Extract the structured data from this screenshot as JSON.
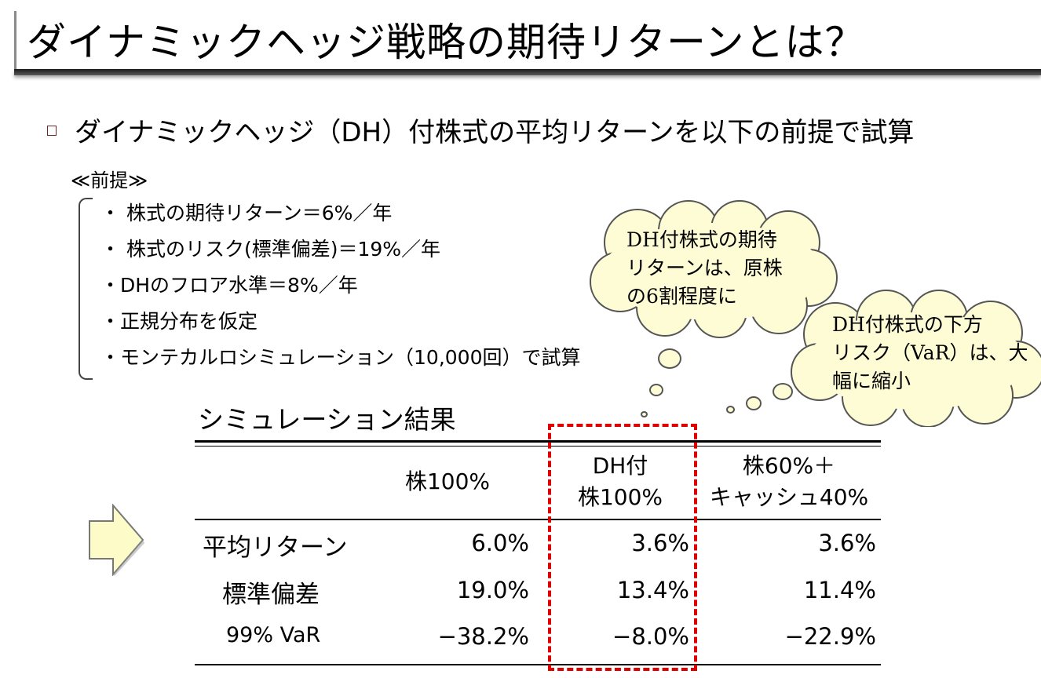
{
  "title": "ダイナミックヘッジ戦略の期待リターンとは？",
  "bullet": "ダイナミックヘッジ（DH）付株式の平均リターンを以下の前提で試算",
  "premise": {
    "heading": "≪前提≫",
    "items": [
      "・ 株式の期待リターン＝6%／年",
      "・ 株式のリスク(標準偏差)＝19%／年",
      "・DHのフロア水準＝8%／年",
      "・正規分布を仮定",
      "・モンテカルロシミュレーション（10,000回）で試算"
    ]
  },
  "callouts": {
    "left": {
      "lines": [
        "DH付株式の期待",
        "リターンは、原株",
        "の6割程度に"
      ]
    },
    "right": {
      "lines": [
        "DH付株式の下方",
        "リスク（VaR）は、大",
        "幅に縮小"
      ]
    }
  },
  "results": {
    "title": "シミュレーション結果",
    "columns": [
      {
        "lines": [
          "株100%"
        ]
      },
      {
        "lines": [
          "DH付",
          "株100%"
        ]
      },
      {
        "lines": [
          "株60%＋",
          "キャッシュ40%"
        ]
      }
    ],
    "rows": [
      {
        "label": "平均リターン",
        "values": [
          "6.0%",
          "3.6%",
          "3.6%"
        ]
      },
      {
        "label": "標準偏差",
        "values": [
          "19.0%",
          "13.4%",
          "11.4%"
        ]
      },
      {
        "label": "99% VaR",
        "values": [
          "−38.2%",
          "−8.0%",
          "−22.9%"
        ]
      }
    ]
  },
  "colors": {
    "highlight": "#e00000",
    "cloud_fill": "#fefcd4",
    "arrow_fill": "#fdfcc8"
  }
}
